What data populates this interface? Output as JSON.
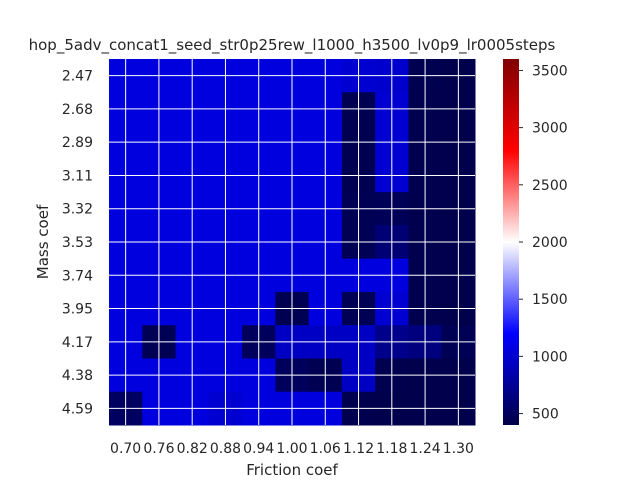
{
  "chart_data": {
    "type": "heatmap",
    "title": "hop_5adv_concat1_seed_str0p25rew_l1000_h3500_lv0p9_lr0005steps",
    "xlabel": "Friction coef",
    "ylabel": "Mass coef",
    "x_ticks": [
      "0.70",
      "0.76",
      "0.82",
      "0.88",
      "0.94",
      "1.00",
      "1.06",
      "1.12",
      "1.18",
      "1.24",
      "1.30"
    ],
    "y_ticks": [
      "2.47",
      "2.68",
      "2.89",
      "3.11",
      "3.32",
      "3.53",
      "3.74",
      "3.95",
      "4.17",
      "4.38",
      "4.59"
    ],
    "colorbar": {
      "colormap": "seismic",
      "vmin": 400,
      "vmax": 3600,
      "ticks": [
        500,
        1000,
        1500,
        2000,
        2500,
        3000,
        3500
      ]
    },
    "grid": true,
    "values": [
      [
        1060,
        1060,
        1060,
        1060,
        1060,
        1060,
        1060,
        1000,
        980,
        450,
        430
      ],
      [
        1060,
        1060,
        1060,
        1060,
        1060,
        1060,
        1060,
        460,
        1000,
        440,
        430
      ],
      [
        1060,
        1060,
        1060,
        1060,
        1060,
        1060,
        1060,
        460,
        1000,
        440,
        430
      ],
      [
        1060,
        1060,
        1060,
        1060,
        1060,
        1060,
        1060,
        460,
        1000,
        440,
        430
      ],
      [
        1060,
        1060,
        1060,
        1060,
        1060,
        1060,
        1060,
        470,
        480,
        440,
        430
      ],
      [
        1060,
        1060,
        1060,
        1060,
        1060,
        1060,
        1060,
        470,
        600,
        440,
        430
      ],
      [
        1060,
        1060,
        1060,
        1060,
        1060,
        1060,
        1060,
        1060,
        1060,
        440,
        430
      ],
      [
        1060,
        1060,
        1060,
        1060,
        1060,
        460,
        1060,
        470,
        1000,
        440,
        430
      ],
      [
        1060,
        470,
        1060,
        1060,
        500,
        950,
        950,
        950,
        700,
        650,
        470
      ],
      [
        1060,
        1060,
        1060,
        1060,
        1060,
        500,
        460,
        950,
        440,
        430,
        430
      ],
      [
        520,
        1060,
        1060,
        1000,
        1060,
        1060,
        1060,
        440,
        430,
        430,
        430
      ]
    ]
  }
}
